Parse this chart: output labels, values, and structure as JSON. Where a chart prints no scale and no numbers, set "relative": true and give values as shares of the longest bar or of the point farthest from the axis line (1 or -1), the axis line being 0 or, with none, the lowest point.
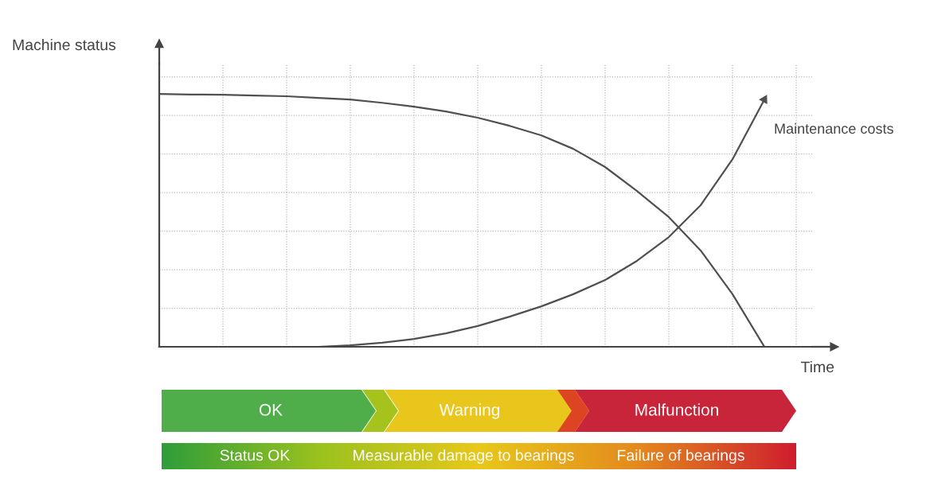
{
  "chart_data": {
    "type": "line",
    "relative": true,
    "ylabel": "Machine status",
    "xlabel": "Time",
    "categories": [
      null,
      null,
      null,
      null,
      null,
      null,
      null,
      null,
      null,
      null,
      null,
      null,
      null,
      null,
      null,
      null,
      null,
      null,
      null,
      null
    ],
    "series": [
      {
        "color": "#505050",
        "values": [
          1,
          0.998,
          0.997,
          0.994,
          0.991,
          0.984,
          0.978,
          0.965,
          0.95,
          0.931,
          0.906,
          0.874,
          0.836,
          0.783,
          0.711,
          0.616,
          0.513,
          0.381,
          0.208,
          0
        ]
      },
      {
        "name": "Maintenance costs",
        "color": "#505050",
        "values": [
          null,
          null,
          null,
          null,
          null,
          0,
          0.006,
          0.016,
          0.031,
          0.053,
          0.082,
          0.119,
          0.16,
          0.208,
          0.264,
          0.34,
          0.434,
          0.56,
          0.742,
          0.978
        ]
      }
    ],
    "grid": true,
    "legend": false,
    "marker": "none",
    "line_style": "solid",
    "annotations": [
      "OK",
      "Warning",
      "Malfunction",
      "Status OK",
      "Measurable damage to bearings",
      "Failure of bearings"
    ]
  }
}
